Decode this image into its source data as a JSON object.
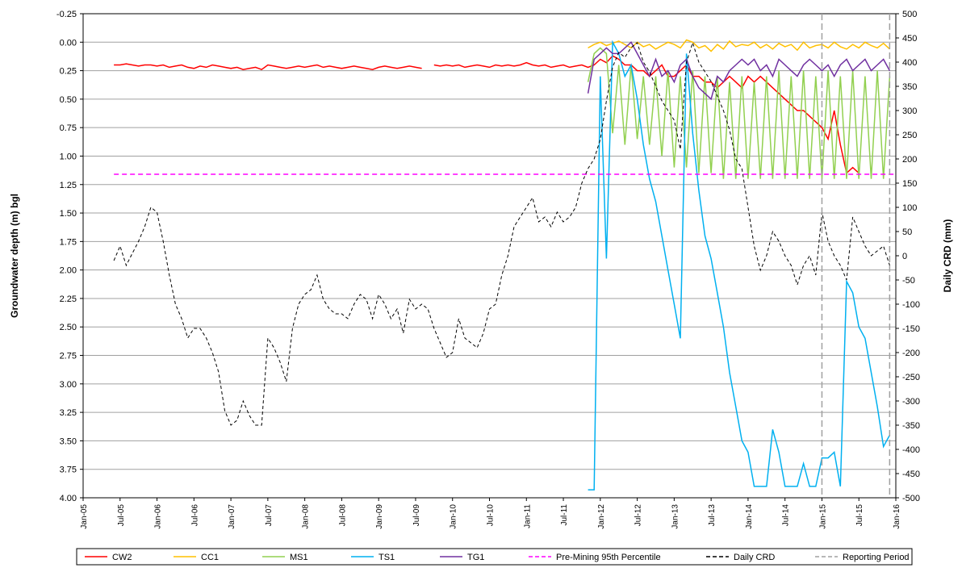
{
  "chart_data": {
    "type": "line",
    "ylabel": "Groundwater depth (m) bgl",
    "y2label": "Daily CRD (mm)",
    "ylim": [
      4.0,
      -0.25
    ],
    "yticks": [
      {
        "value": -0.25,
        "label": "-0.25"
      },
      {
        "value": 0,
        "label": "0.00"
      },
      {
        "value": 0.25,
        "label": "0.25"
      },
      {
        "value": 0.5,
        "label": "0.50"
      },
      {
        "value": 0.75,
        "label": "0.75"
      },
      {
        "value": 1,
        "label": "1.00"
      },
      {
        "value": 1.25,
        "label": "1.25"
      },
      {
        "value": 1.5,
        "label": "1.50"
      },
      {
        "value": 1.75,
        "label": "1.75"
      },
      {
        "value": 2,
        "label": "2.00"
      },
      {
        "value": 2.25,
        "label": "2.25"
      },
      {
        "value": 2.5,
        "label": "2.50"
      },
      {
        "value": 2.75,
        "label": "2.75"
      },
      {
        "value": 3,
        "label": "3.00"
      },
      {
        "value": 3.25,
        "label": "3.25"
      },
      {
        "value": 3.5,
        "label": "3.50"
      },
      {
        "value": 3.75,
        "label": "3.75"
      },
      {
        "value": 4,
        "label": "4.00"
      }
    ],
    "y2lim": [
      -500,
      500
    ],
    "y2ticks": [
      -500,
      -450,
      -400,
      -350,
      -300,
      -250,
      -200,
      -150,
      -100,
      -50,
      0,
      50,
      100,
      150,
      200,
      250,
      300,
      350,
      400,
      450,
      500
    ],
    "xlim": [
      "Jan-05",
      "Jan-16"
    ],
    "xticks": [
      "Jan-05",
      "Jul-05",
      "Jan-06",
      "Jul-06",
      "Jan-07",
      "Jul-07",
      "Jan-08",
      "Jul-08",
      "Jan-09",
      "Jul-09",
      "Jan-10",
      "Jul-10",
      "Jan-11",
      "Jul-11",
      "Jan-12",
      "Jul-12",
      "Jan-13",
      "Jul-13",
      "Jan-14",
      "Jul-14",
      "Jan-15",
      "Jul-15",
      "Jan-16"
    ],
    "grid": true,
    "legend": "bottom",
    "x": [
      "Jun-05",
      "Jul-05",
      "Aug-05",
      "Sep-05",
      "Oct-05",
      "Nov-05",
      "Dec-05",
      "Jan-06",
      "Feb-06",
      "Mar-06",
      "Apr-06",
      "May-06",
      "Jun-06",
      "Jul-06",
      "Aug-06",
      "Sep-06",
      "Oct-06",
      "Nov-06",
      "Dec-06",
      "Jan-07",
      "Feb-07",
      "Mar-07",
      "Apr-07",
      "May-07",
      "Jun-07",
      "Jul-07",
      "Aug-07",
      "Sep-07",
      "Oct-07",
      "Nov-07",
      "Dec-07",
      "Jan-08",
      "Feb-08",
      "Mar-08",
      "Apr-08",
      "May-08",
      "Jun-08",
      "Jul-08",
      "Aug-08",
      "Sep-08",
      "Oct-08",
      "Nov-08",
      "Dec-08",
      "Jan-09",
      "Feb-09",
      "Mar-09",
      "Apr-09",
      "May-09",
      "Jun-09",
      "Jul-09",
      "Aug-09",
      "Sep-09",
      "Oct-09",
      "Nov-09",
      "Dec-09",
      "Jan-10",
      "Feb-10",
      "Mar-10",
      "Apr-10",
      "May-10",
      "Jun-10",
      "Jul-10",
      "Aug-10",
      "Sep-10",
      "Oct-10",
      "Nov-10",
      "Dec-10",
      "Jan-11",
      "Feb-11",
      "Mar-11",
      "Apr-11",
      "May-11",
      "Jun-11",
      "Jul-11",
      "Aug-11",
      "Sep-11",
      "Oct-11",
      "Nov-11",
      "Dec-11",
      "Jan-12",
      "Feb-12",
      "Mar-12",
      "Apr-12",
      "May-12",
      "Jun-12",
      "Jul-12",
      "Aug-12",
      "Sep-12",
      "Oct-12",
      "Nov-12",
      "Dec-12",
      "Jan-13",
      "Feb-13",
      "Mar-13",
      "Apr-13",
      "May-13",
      "Jun-13",
      "Jul-13",
      "Aug-13",
      "Sep-13",
      "Oct-13",
      "Nov-13",
      "Dec-13",
      "Jan-14",
      "Feb-14",
      "Mar-14",
      "Apr-14",
      "May-14",
      "Jun-14",
      "Jul-14",
      "Aug-14",
      "Sep-14",
      "Oct-14",
      "Nov-14",
      "Dec-14",
      "Jan-15",
      "Feb-15",
      "Mar-15",
      "Apr-15",
      "May-15",
      "Jun-15",
      "Jul-15",
      "Aug-15",
      "Sep-15",
      "Oct-15",
      "Nov-15",
      "Dec-15"
    ],
    "series": [
      {
        "name": "CW2",
        "color": "#ff0000",
        "values": [
          0.2,
          0.2,
          0.19,
          0.2,
          0.21,
          0.2,
          0.2,
          0.21,
          0.2,
          0.22,
          0.21,
          0.2,
          0.22,
          0.23,
          0.21,
          0.22,
          0.2,
          0.21,
          0.22,
          0.23,
          0.22,
          0.24,
          0.23,
          0.22,
          0.24,
          0.2,
          0.21,
          0.22,
          0.23,
          0.22,
          0.21,
          0.22,
          0.21,
          0.2,
          0.22,
          0.21,
          0.22,
          0.23,
          0.22,
          0.21,
          0.22,
          0.23,
          0.24,
          0.22,
          0.21,
          0.22,
          0.23,
          0.22,
          0.21,
          0.22,
          0.23,
          null,
          0.2,
          0.21,
          0.2,
          0.21,
          0.2,
          0.22,
          0.21,
          0.2,
          0.21,
          0.22,
          0.2,
          0.21,
          0.2,
          0.21,
          0.2,
          0.18,
          0.2,
          0.21,
          0.2,
          0.22,
          0.21,
          0.2,
          0.22,
          0.21,
          0.2,
          0.22,
          0.2,
          0.15,
          0.18,
          0.12,
          0.15,
          0.2,
          0.2,
          0.25,
          0.25,
          0.3,
          0.25,
          0.2,
          0.3,
          0.3,
          0.25,
          0.2,
          0.3,
          0.3,
          0.35,
          0.35,
          0.4,
          0.35,
          0.3,
          0.35,
          0.4,
          0.3,
          0.35,
          0.3,
          0.35,
          0.4,
          0.45,
          0.5,
          0.55,
          0.6,
          0.6,
          0.65,
          0.7,
          0.75,
          0.85,
          0.6,
          0.9,
          1.15,
          1.1,
          1.15,
          null,
          null,
          null,
          null,
          null
        ]
      },
      {
        "name": "CC1",
        "color": "#ffc000",
        "values": [
          null,
          null,
          null,
          null,
          null,
          null,
          null,
          null,
          null,
          null,
          null,
          null,
          null,
          null,
          null,
          null,
          null,
          null,
          null,
          null,
          null,
          null,
          null,
          null,
          null,
          null,
          null,
          null,
          null,
          null,
          null,
          null,
          null,
          null,
          null,
          null,
          null,
          null,
          null,
          null,
          null,
          null,
          null,
          null,
          null,
          null,
          null,
          null,
          null,
          null,
          null,
          null,
          null,
          null,
          null,
          null,
          null,
          null,
          null,
          null,
          null,
          null,
          null,
          null,
          null,
          null,
          null,
          null,
          null,
          null,
          null,
          null,
          null,
          null,
          null,
          null,
          null,
          0.05,
          0.02,
          0,
          0.03,
          0.01,
          -0.01,
          0.02,
          0.05,
          0,
          0.04,
          0.02,
          0.06,
          0.03,
          0,
          0.02,
          0.05,
          -0.02,
          0,
          0.05,
          0.03,
          0.08,
          0.02,
          0.06,
          -0.01,
          0.04,
          0.02,
          0.03,
          0,
          0.05,
          0.02,
          0.06,
          0.01,
          0.04,
          0.02,
          0.07,
          0,
          0.05,
          0.03,
          0.02,
          0.05,
          0,
          0.04,
          0.06,
          0.02,
          0.05,
          0,
          0.03,
          0.05,
          0.01,
          0.06
        ]
      },
      {
        "name": "MS1",
        "color": "#92d050",
        "values": [
          null,
          null,
          null,
          null,
          null,
          null,
          null,
          null,
          null,
          null,
          null,
          null,
          null,
          null,
          null,
          null,
          null,
          null,
          null,
          null,
          null,
          null,
          null,
          null,
          null,
          null,
          null,
          null,
          null,
          null,
          null,
          null,
          null,
          null,
          null,
          null,
          null,
          null,
          null,
          null,
          null,
          null,
          null,
          null,
          null,
          null,
          null,
          null,
          null,
          null,
          null,
          null,
          null,
          null,
          null,
          null,
          null,
          null,
          null,
          null,
          null,
          null,
          null,
          null,
          null,
          null,
          null,
          null,
          null,
          null,
          null,
          null,
          null,
          null,
          null,
          null,
          null,
          0.35,
          0.1,
          0.05,
          0.1,
          0.8,
          0.2,
          0.9,
          0.2,
          0.85,
          0.3,
          0.9,
          0.3,
          1.0,
          0.25,
          1.1,
          0.3,
          1.1,
          0.25,
          1.15,
          0.3,
          1.15,
          0.3,
          1.2,
          0.35,
          1.2,
          0.3,
          1.2,
          0.35,
          1.2,
          0.3,
          1.2,
          0.25,
          1.2,
          0.3,
          1.2,
          0.25,
          1.2,
          0.3,
          1.2,
          0.25,
          1.2,
          0.3,
          1.2,
          0.25,
          1.2,
          0.3,
          1.2,
          0.25,
          1.2,
          0.3
        ]
      },
      {
        "name": "TS1",
        "color": "#00b0f0",
        "values": [
          null,
          null,
          null,
          null,
          null,
          null,
          null,
          null,
          null,
          null,
          null,
          null,
          null,
          null,
          null,
          null,
          null,
          null,
          null,
          null,
          null,
          null,
          null,
          null,
          null,
          null,
          null,
          null,
          null,
          null,
          null,
          null,
          null,
          null,
          null,
          null,
          null,
          null,
          null,
          null,
          null,
          null,
          null,
          null,
          null,
          null,
          null,
          null,
          null,
          null,
          null,
          null,
          null,
          null,
          null,
          null,
          null,
          null,
          null,
          null,
          null,
          null,
          null,
          null,
          null,
          null,
          null,
          null,
          null,
          null,
          null,
          null,
          null,
          null,
          null,
          null,
          null,
          3.93,
          3.93,
          0.3,
          1.9,
          0,
          0.1,
          0.3,
          0.2,
          0.5,
          0.9,
          1.2,
          1.4,
          1.7,
          2.0,
          2.3,
          2.6,
          0.1,
          0.8,
          1.3,
          1.7,
          1.9,
          2.2,
          2.5,
          2.9,
          3.2,
          3.5,
          3.6,
          3.9,
          3.9,
          3.9,
          3.4,
          3.6,
          3.9,
          3.9,
          3.9,
          3.7,
          3.9,
          3.9,
          3.65,
          3.65,
          3.6,
          3.9,
          2.1,
          2.2,
          2.5,
          2.6,
          2.9,
          3.2,
          3.55,
          3.45
        ]
      },
      {
        "name": "TG1",
        "color": "#7030a0",
        "values": [
          null,
          null,
          null,
          null,
          null,
          null,
          null,
          null,
          null,
          null,
          null,
          null,
          null,
          null,
          null,
          null,
          null,
          null,
          null,
          null,
          null,
          null,
          null,
          null,
          null,
          null,
          null,
          null,
          null,
          null,
          null,
          null,
          null,
          null,
          null,
          null,
          null,
          null,
          null,
          null,
          null,
          null,
          null,
          null,
          null,
          null,
          null,
          null,
          null,
          null,
          null,
          null,
          null,
          null,
          null,
          null,
          null,
          null,
          null,
          null,
          null,
          null,
          null,
          null,
          null,
          null,
          null,
          null,
          null,
          null,
          null,
          null,
          null,
          null,
          null,
          null,
          null,
          0.45,
          0.15,
          0.1,
          0.05,
          0.1,
          0.1,
          0.05,
          0,
          0.1,
          0.2,
          0.3,
          0.15,
          0.3,
          0.25,
          0.35,
          0.2,
          0.15,
          0.3,
          0.4,
          0.45,
          0.5,
          0.3,
          0.35,
          0.25,
          0.2,
          0.15,
          0.2,
          0.15,
          0.25,
          0.2,
          0.3,
          0.15,
          0.2,
          0.25,
          0.3,
          0.2,
          0.15,
          0.2,
          0.25,
          0.2,
          0.3,
          0.2,
          0.15,
          0.25,
          0.2,
          0.15,
          0.25,
          0.2,
          0.15,
          0.25
        ]
      },
      {
        "name": "Pre-Mining 95th Percentile",
        "color": "#ff00ff",
        "type": "hline",
        "dashed": true,
        "value": 1.16
      },
      {
        "name": "Daily CRD",
        "color": "#000000",
        "axis": "y2",
        "dashed": true,
        "values": [
          -10,
          20,
          -20,
          5,
          30,
          60,
          100,
          90,
          30,
          -40,
          -100,
          -130,
          -170,
          -150,
          -150,
          -170,
          -200,
          -240,
          -320,
          -350,
          -340,
          -300,
          -330,
          -350,
          -350,
          -170,
          -190,
          -220,
          -260,
          -150,
          -100,
          -80,
          -70,
          -40,
          -90,
          -110,
          -120,
          -120,
          -130,
          -100,
          -80,
          -90,
          -130,
          -80,
          -100,
          -130,
          -110,
          -160,
          -90,
          -110,
          -100,
          -110,
          -150,
          -180,
          -210,
          -200,
          -130,
          -170,
          -180,
          -190,
          -160,
          -110,
          -100,
          -40,
          0,
          60,
          80,
          100,
          120,
          70,
          80,
          60,
          90,
          70,
          80,
          100,
          150,
          180,
          200,
          240,
          320,
          390,
          420,
          410,
          430,
          440,
          400,
          380,
          350,
          320,
          300,
          280,
          220,
          400,
          440,
          400,
          380,
          360,
          330,
          300,
          260,
          200,
          180,
          100,
          20,
          -30,
          0,
          50,
          30,
          0,
          -20,
          -60,
          -20,
          0,
          -40,
          90,
          30,
          0,
          -20,
          -50,
          80,
          50,
          20,
          0,
          10,
          20,
          -20
        ]
      },
      {
        "name": "Reporting Period",
        "color": "#a0a0a0",
        "type": "vline",
        "dashed": true,
        "x": [
          "Jan-15",
          "Dec-15"
        ]
      }
    ]
  }
}
